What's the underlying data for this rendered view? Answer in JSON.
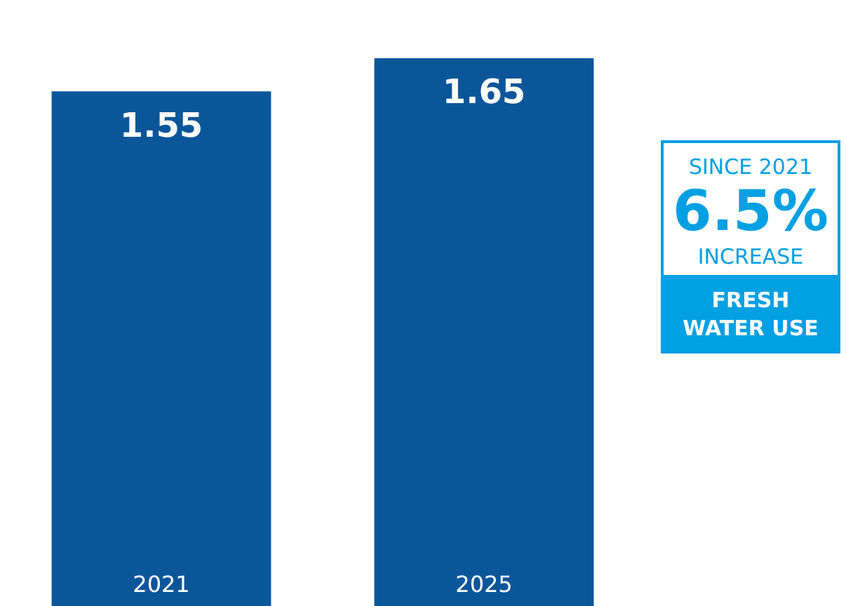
{
  "chart_data": {
    "type": "bar",
    "categories": [
      "2021",
      "2025"
    ],
    "values": [
      1.55,
      1.65
    ],
    "color": "#0b5699",
    "data_labels": true,
    "legend": false,
    "annotations": [
      "SINCE 2021",
      "6.5%",
      "INCREASE",
      "FRESH WATER USE"
    ]
  }
}
